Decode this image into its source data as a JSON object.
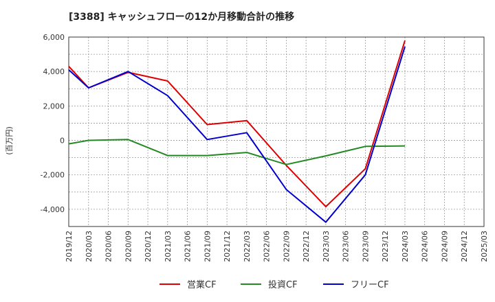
{
  "chart_data": {
    "type": "line",
    "title": "[3388]  キャッシュフローの12か月移動合計の推移",
    "ylabel": "(百万円)",
    "xlabel": "",
    "ylim": [
      -5000,
      6000
    ],
    "yticks": [
      6000,
      4000,
      2000,
      0,
      -2000,
      -4000
    ],
    "ytick_labels": [
      "6,000",
      "4,000",
      "2,000",
      "0",
      "-2,000",
      "-4,000"
    ],
    "categories": [
      "2019/12",
      "2020/03",
      "2020/06",
      "2020/09",
      "2020/12",
      "2021/03",
      "2021/06",
      "2021/09",
      "2021/12",
      "2022/03",
      "2022/06",
      "2022/09",
      "2022/12",
      "2023/03",
      "2023/06",
      "2023/09",
      "2023/12",
      "2024/03",
      "2024/06",
      "2024/09",
      "2024/12",
      "2025/03"
    ],
    "series": [
      {
        "name": "営業CF",
        "color": "#dd0000",
        "values": [
          4300,
          3050,
          null,
          3950,
          null,
          3450,
          null,
          920,
          null,
          1150,
          null,
          -1450,
          null,
          -3850,
          null,
          -1650,
          null,
          5800,
          null,
          null,
          null,
          null
        ]
      },
      {
        "name": "投資CF",
        "color": "#228822",
        "values": [
          -200,
          0,
          null,
          50,
          null,
          -880,
          null,
          -880,
          null,
          -700,
          null,
          -1400,
          null,
          -900,
          null,
          -350,
          null,
          -320,
          null,
          null,
          null,
          null
        ]
      },
      {
        "name": "フリーCF",
        "color": "#0000cc",
        "values": [
          4100,
          3050,
          null,
          4000,
          null,
          2600,
          null,
          50,
          null,
          450,
          null,
          -2850,
          null,
          -4750,
          null,
          -2000,
          null,
          5450,
          null,
          null,
          null,
          null
        ]
      }
    ]
  }
}
